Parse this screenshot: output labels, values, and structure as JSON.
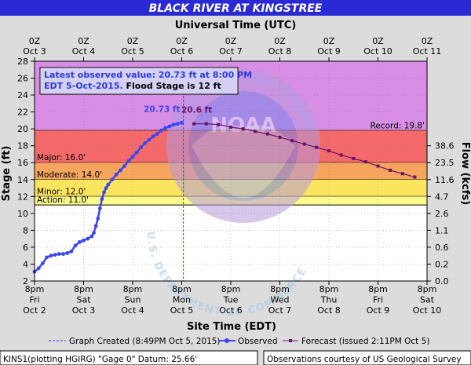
{
  "title": "BLACK RIVER AT KINGSTREE",
  "top_axis_title": "Universal Time (UTC)",
  "bottom_axis_title": "Site Time (EDT)",
  "left_axis_title": "Stage (ft)",
  "right_axis_title": "Flow (kcfs)",
  "info_box": {
    "line1": "Latest observed value: 20.73 ft at 8:00 PM",
    "line2a": "EDT 5-Oct-2015.",
    "line2b": " Flood Stage is 12 ft"
  },
  "footer": {
    "left": "KINS1(plotting HGIRG) \"Gage 0\" Datum: 25.66'",
    "right": "Observations courtesy of US Geological Survey"
  },
  "watermark": {
    "noaa_ring_text": "NATIONAL OCEANIC AND ATMOSPHERIC ADMINISTRATION",
    "noaa_center": "NOAA",
    "doc_ring_text": "U.S. DEPARTMENT OF COMMERCE"
  },
  "colors": {
    "title_bar": "#2a2ad4",
    "record_band": "#d98ee6",
    "major_band": "#f46a6a",
    "moderate_band": "#f5a55e",
    "minor_band": "#fbe55e",
    "observed": "#3c46ee",
    "forecast": "#6b126b",
    "page_bg": "#dcdcdc"
  },
  "chart_data": {
    "type": "line",
    "title": "BLACK RIVER AT KINGSTREE",
    "xlabel": "Site Time (EDT)",
    "x2label": "Universal Time (UTC)",
    "ylabel": "Stage (ft)",
    "y2label": "Flow (kcfs)",
    "xlim": [
      "2015-10-02T20:00",
      "2015-10-10T20:00"
    ],
    "ylim": [
      2,
      28
    ],
    "yticks": [
      2,
      4,
      6,
      8,
      10,
      12,
      14,
      16,
      18,
      20,
      22,
      24,
      26,
      28
    ],
    "x_ticks": [
      {
        "time": "2015-10-02T20:00",
        "l1": "8pm",
        "l2": "Fri",
        "l3": "Oct 2"
      },
      {
        "time": "2015-10-03T20:00",
        "l1": "8pm",
        "l2": "Sat",
        "l3": "Oct 3"
      },
      {
        "time": "2015-10-04T20:00",
        "l1": "8pm",
        "l2": "Sun",
        "l3": "Oct 4"
      },
      {
        "time": "2015-10-05T20:00",
        "l1": "8pm",
        "l2": "Mon",
        "l3": "Oct 5"
      },
      {
        "time": "2015-10-06T20:00",
        "l1": "8pm",
        "l2": "Tue",
        "l3": "Oct 6"
      },
      {
        "time": "2015-10-07T20:00",
        "l1": "8pm",
        "l2": "Wed",
        "l3": "Oct 7"
      },
      {
        "time": "2015-10-08T20:00",
        "l1": "8pm",
        "l2": "Thu",
        "l3": "Oct 8"
      },
      {
        "time": "2015-10-09T20:00",
        "l1": "8pm",
        "l2": "Fri",
        "l3": "Oct 9"
      },
      {
        "time": "2015-10-10T20:00",
        "l1": "8pm",
        "l2": "Sat",
        "l3": "Oct 10"
      }
    ],
    "top_ticks": [
      {
        "time": "2015-10-02T20:00",
        "l1": "0Z",
        "l2": "Oct 3"
      },
      {
        "time": "2015-10-03T20:00",
        "l1": "0Z",
        "l2": "Oct 4"
      },
      {
        "time": "2015-10-04T20:00",
        "l1": "0Z",
        "l2": "Oct 5"
      },
      {
        "time": "2015-10-05T20:00",
        "l1": "0Z",
        "l2": "Oct 6"
      },
      {
        "time": "2015-10-06T20:00",
        "l1": "0Z",
        "l2": "Oct 7"
      },
      {
        "time": "2015-10-07T20:00",
        "l1": "0Z",
        "l2": "Oct 8"
      },
      {
        "time": "2015-10-08T20:00",
        "l1": "0Z",
        "l2": "Oct 9"
      },
      {
        "time": "2015-10-09T20:00",
        "l1": "0Z",
        "l2": "Oct 10"
      },
      {
        "time": "2015-10-10T20:00",
        "l1": "0Z",
        "l2": "Oct 11"
      }
    ],
    "flow_ticks": [
      {
        "stage": 2,
        "label": "0.0"
      },
      {
        "stage": 4,
        "label": "0.2"
      },
      {
        "stage": 6,
        "label": "0.6"
      },
      {
        "stage": 8,
        "label": "1.1"
      },
      {
        "stage": 10,
        "label": "2.6"
      },
      {
        "stage": 12,
        "label": "4.7"
      },
      {
        "stage": 14,
        "label": "11.6"
      },
      {
        "stage": 16,
        "label": "23.5"
      },
      {
        "stage": 18,
        "label": "38.6"
      }
    ],
    "flood_categories": [
      {
        "name": "Record",
        "label": "Record: 19.8'",
        "from": 19.8,
        "to": 28,
        "color": "#d98ee6"
      },
      {
        "name": "Major",
        "label": "Major: 16.0'",
        "from": 16.0,
        "to": 19.8,
        "color": "#f46a6a"
      },
      {
        "name": "Moderate",
        "label": "Moderate: 14.0'",
        "from": 14.0,
        "to": 16.0,
        "color": "#f5a55e"
      },
      {
        "name": "Minor",
        "label": "Minor: 12.0'",
        "from": 12.0,
        "to": 14.0,
        "color": "#fbe55e"
      },
      {
        "name": "Action",
        "label": "Action: 11.0'",
        "from": 11.0,
        "to": 12.0,
        "color": "#fbfb8c"
      }
    ],
    "observed": {
      "name": "Observed",
      "label": "20.73 ft",
      "color": "#3c46ee",
      "points": [
        [
          "2015-10-02T20:00",
          3.1
        ],
        [
          "2015-10-02T22:00",
          3.5
        ],
        [
          "2015-10-03T00:00",
          4.1
        ],
        [
          "2015-10-03T02:00",
          4.8
        ],
        [
          "2015-10-03T04:00",
          5.0
        ],
        [
          "2015-10-03T06:00",
          5.1
        ],
        [
          "2015-10-03T08:00",
          5.2
        ],
        [
          "2015-10-03T10:00",
          5.2
        ],
        [
          "2015-10-03T12:00",
          5.3
        ],
        [
          "2015-10-03T14:00",
          5.5
        ],
        [
          "2015-10-03T16:00",
          6.2
        ],
        [
          "2015-10-03T18:00",
          6.6
        ],
        [
          "2015-10-03T20:00",
          6.8
        ],
        [
          "2015-10-03T22:00",
          7.0
        ],
        [
          "2015-10-04T00:00",
          7.3
        ],
        [
          "2015-10-04T01:00",
          7.7
        ],
        [
          "2015-10-04T02:00",
          8.5
        ],
        [
          "2015-10-04T03:00",
          9.4
        ],
        [
          "2015-10-04T04:00",
          10.6
        ],
        [
          "2015-10-04T05:00",
          11.7
        ],
        [
          "2015-10-04T06:00",
          12.5
        ],
        [
          "2015-10-04T07:00",
          13.0
        ],
        [
          "2015-10-04T08:00",
          13.4
        ],
        [
          "2015-10-04T10:00",
          14.0
        ],
        [
          "2015-10-04T12:00",
          14.6
        ],
        [
          "2015-10-04T14:00",
          15.1
        ],
        [
          "2015-10-04T16:00",
          15.6
        ],
        [
          "2015-10-04T18:00",
          16.2
        ],
        [
          "2015-10-04T20:00",
          16.7
        ],
        [
          "2015-10-04T22:00",
          17.2
        ],
        [
          "2015-10-05T00:00",
          17.8
        ],
        [
          "2015-10-05T02:00",
          18.3
        ],
        [
          "2015-10-05T04:00",
          18.7
        ],
        [
          "2015-10-05T06:00",
          19.1
        ],
        [
          "2015-10-05T08:00",
          19.4
        ],
        [
          "2015-10-05T10:00",
          19.8
        ],
        [
          "2015-10-05T12:00",
          20.1
        ],
        [
          "2015-10-05T14:00",
          20.3
        ],
        [
          "2015-10-05T16:00",
          20.5
        ],
        [
          "2015-10-05T18:00",
          20.6
        ],
        [
          "2015-10-05T20:00",
          20.73
        ]
      ]
    },
    "forecast": {
      "name": "Forecast",
      "label": "20.6 ft",
      "color": "#6b126b",
      "points": [
        [
          "2015-10-06T02:00",
          20.6
        ],
        [
          "2015-10-06T08:00",
          20.6
        ],
        [
          "2015-10-06T14:00",
          20.5
        ],
        [
          "2015-10-06T20:00",
          20.2
        ],
        [
          "2015-10-07T02:00",
          20.0
        ],
        [
          "2015-10-07T08:00",
          19.7
        ],
        [
          "2015-10-07T14:00",
          19.4
        ],
        [
          "2015-10-07T20:00",
          19.0
        ],
        [
          "2015-10-08T02:00",
          18.6
        ],
        [
          "2015-10-08T08:00",
          18.2
        ],
        [
          "2015-10-08T14:00",
          17.8
        ],
        [
          "2015-10-08T20:00",
          17.4
        ],
        [
          "2015-10-09T02:00",
          16.9
        ],
        [
          "2015-10-09T08:00",
          16.5
        ],
        [
          "2015-10-09T14:00",
          16.1
        ],
        [
          "2015-10-09T20:00",
          15.6
        ],
        [
          "2015-10-10T02:00",
          15.1
        ],
        [
          "2015-10-10T08:00",
          14.7
        ],
        [
          "2015-10-10T14:00",
          14.3
        ]
      ]
    },
    "graph_created": "2015-10-05T20:49"
  },
  "legend": [
    {
      "key": "created",
      "text": "Graph Created (8:49PM Oct 5, 2015)"
    },
    {
      "key": "observed",
      "text": "Observed"
    },
    {
      "key": "forecast",
      "text": "Forecast (issued 2:11PM Oct 5)"
    }
  ]
}
